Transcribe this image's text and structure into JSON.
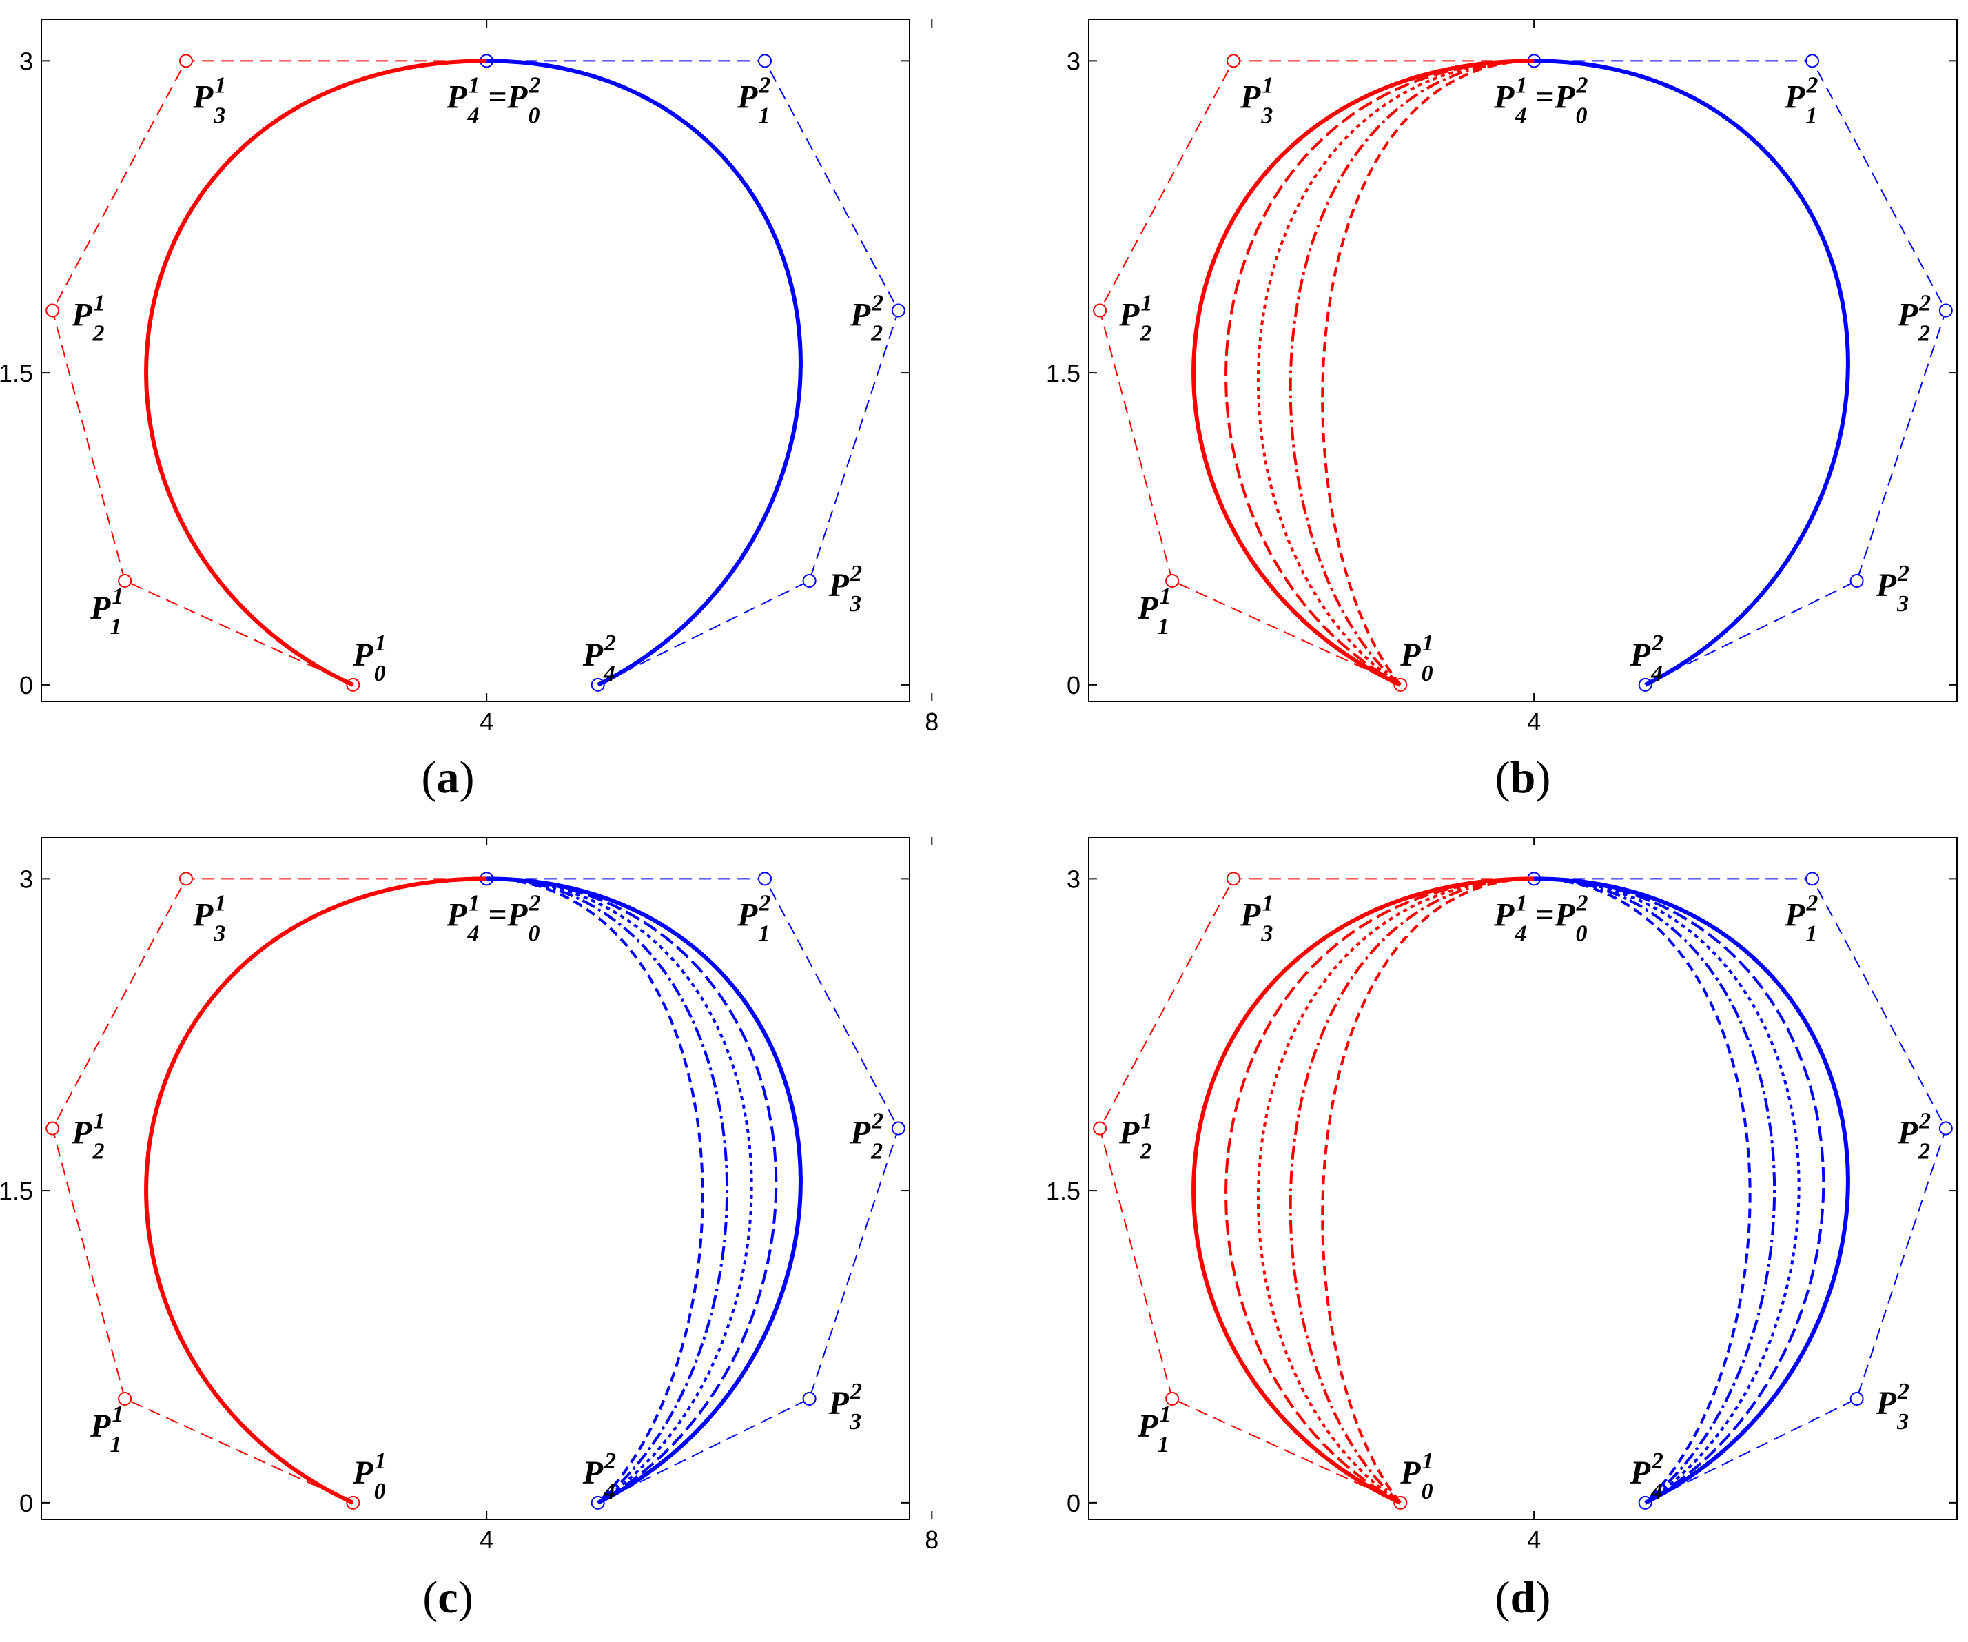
{
  "chart_data": [
    {
      "type": "line",
      "panel": "a",
      "caption_open": "(",
      "caption_letter": "a",
      "caption_close": ")",
      "xlim": [
        0,
        8
      ],
      "ylim": [
        0,
        3
      ],
      "xticks": [
        {
          "value": 4,
          "label": "4"
        },
        {
          "value": 8,
          "label": "8"
        }
      ],
      "yticks": [
        {
          "value": 0,
          "label": "0"
        },
        {
          "value": 1.5,
          "label": "1.5"
        },
        {
          "value": 3,
          "label": "3"
        }
      ],
      "grid": false,
      "red_variations": 0,
      "blue_variations": 0
    },
    {
      "type": "line",
      "panel": "b",
      "caption_open": "(",
      "caption_letter": "b",
      "caption_close": ")",
      "xlim": [
        0,
        8
      ],
      "ylim": [
        0,
        3
      ],
      "xticks": [
        {
          "value": 4,
          "label": "4"
        },
        {
          "value": 8,
          "label": "8"
        }
      ],
      "yticks": [
        {
          "value": 0,
          "label": "0"
        },
        {
          "value": 1.5,
          "label": "1.5"
        },
        {
          "value": 3,
          "label": "3"
        }
      ],
      "grid": false,
      "red_variations": 4,
      "blue_variations": 0
    },
    {
      "type": "line",
      "panel": "c",
      "caption_open": "(",
      "caption_letter": "c",
      "caption_close": ")",
      "xlim": [
        0,
        8
      ],
      "ylim": [
        0,
        3
      ],
      "xticks": [
        {
          "value": 4,
          "label": "4"
        },
        {
          "value": 8,
          "label": "8"
        }
      ],
      "yticks": [
        {
          "value": 0,
          "label": "0"
        },
        {
          "value": 1.5,
          "label": "1.5"
        },
        {
          "value": 3,
          "label": "3"
        }
      ],
      "grid": false,
      "red_variations": 0,
      "blue_variations": 4
    },
    {
      "type": "line",
      "panel": "d",
      "caption_open": "(",
      "caption_letter": "d",
      "caption_close": ")",
      "xlim": [
        0,
        8
      ],
      "ylim": [
        0,
        3
      ],
      "xticks": [
        {
          "value": 4,
          "label": "4"
        },
        {
          "value": 8,
          "label": "8"
        }
      ],
      "yticks": [
        {
          "value": 0,
          "label": "0"
        },
        {
          "value": 1.5,
          "label": "1.5"
        },
        {
          "value": 3,
          "label": "3"
        }
      ],
      "grid": false,
      "red_variations": 4,
      "blue_variations": 4
    }
  ],
  "curves": {
    "red": {
      "color": "#ff0000",
      "control_points": [
        [
          2.8,
          0
        ],
        [
          0.75,
          0.5
        ],
        [
          0.1,
          1.8
        ],
        [
          1.3,
          3.0
        ],
        [
          4.0,
          3.0
        ]
      ],
      "labels": [
        {
          "base": "P",
          "sup": "1",
          "sub": "0"
        },
        {
          "base": "P",
          "sup": "1",
          "sub": "1"
        },
        {
          "base": "P",
          "sup": "1",
          "sub": "2"
        },
        {
          "base": "P",
          "sup": "1",
          "sub": "3"
        }
      ]
    },
    "blue": {
      "color": "#0000ff",
      "control_points": [
        [
          4.0,
          3.0
        ],
        [
          6.5,
          3.0
        ],
        [
          7.7,
          1.8
        ],
        [
          6.9,
          0.5
        ],
        [
          5.0,
          0
        ]
      ],
      "labels": [
        {
          "base": "P",
          "sup": "2",
          "sub": "1"
        },
        {
          "base": "P",
          "sup": "2",
          "sub": "2"
        },
        {
          "base": "P",
          "sup": "2",
          "sub": "3"
        },
        {
          "base": "P",
          "sup": "2",
          "sub": "4"
        }
      ]
    },
    "joint_label": {
      "a": {
        "base": "P",
        "sup": "1",
        "sub": "4"
      },
      "eq": "=",
      "b": {
        "base": "P",
        "sup": "2",
        "sub": "0"
      }
    }
  }
}
